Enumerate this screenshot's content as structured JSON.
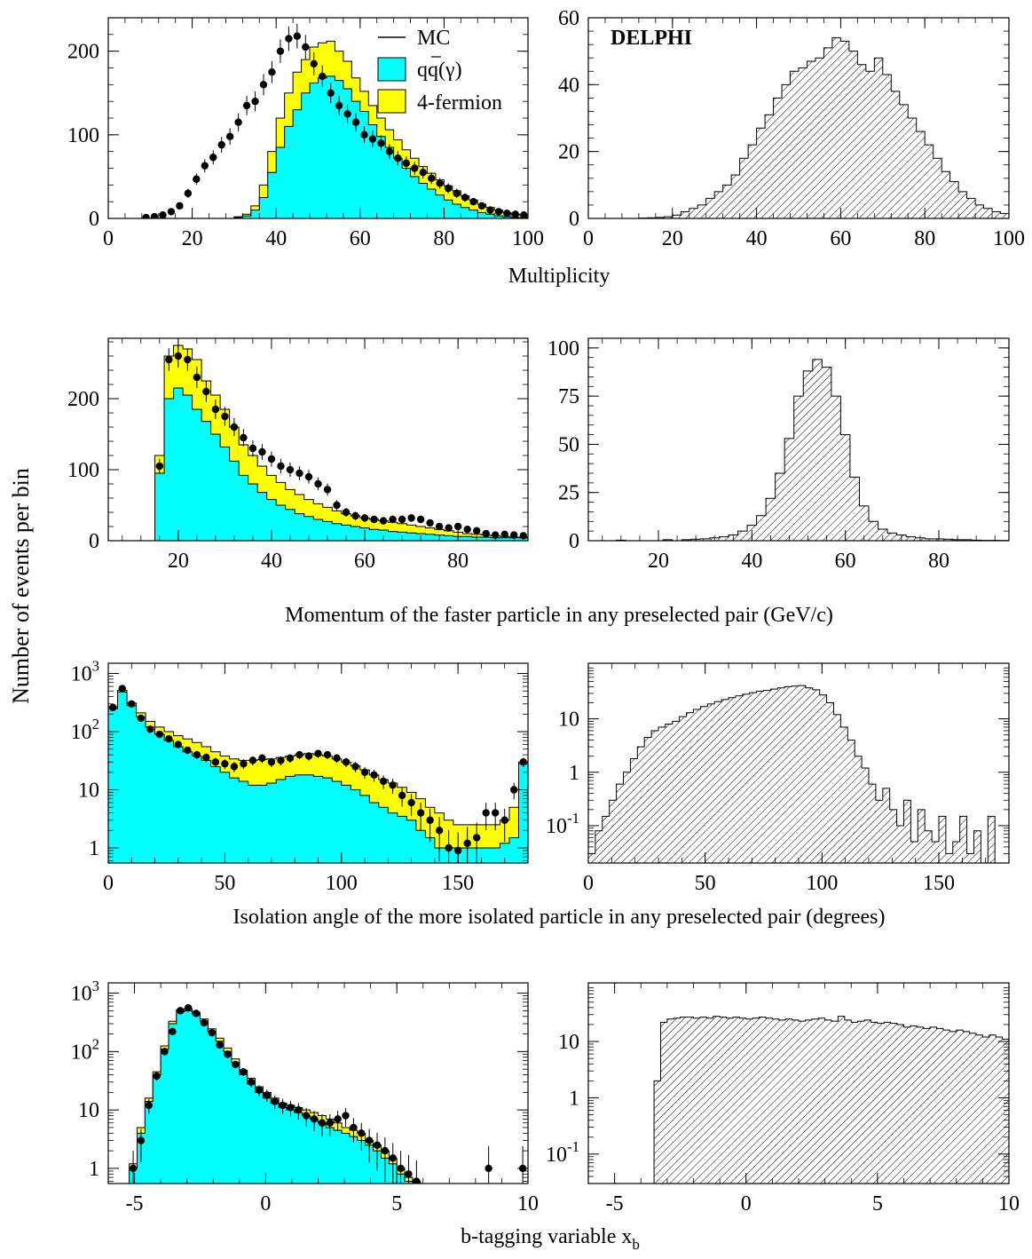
{
  "figure": {
    "y_axis_title": "Number of events per bin",
    "experiment_label": "DELPHI",
    "row_titles": [
      "Multiplicity",
      "Momentum of the faster particle in any preselected pair (GeV/c)",
      "Isolation angle of the more isolated particle in any preselected pair (degrees)",
      "b-tagging variable x"
    ],
    "row4_title_subscript": "b",
    "legend": {
      "mc": "MC",
      "qq": "qq(γ)",
      "four_fermion": "4-fermion"
    },
    "colors": {
      "qq": "#00ffff",
      "four_fermion": "#ffff00",
      "line": "#000000",
      "data": "#000000"
    }
  },
  "chart_data": [
    {
      "type": "bar",
      "title": "",
      "xlabel": "Multiplicity",
      "xlim": [
        0,
        100
      ],
      "ylim": [
        0,
        240
      ],
      "xticks": [
        "0",
        "20",
        "40",
        "60",
        "80",
        "100"
      ],
      "yticks": [
        "0",
        "100",
        "200"
      ],
      "bin_edges_start": 0,
      "bin_width": 2,
      "series": [
        {
          "name": "qq(γ)",
          "values": [
            0,
            0,
            0,
            0,
            0,
            0,
            0,
            0,
            0,
            0,
            0,
            0,
            0,
            0,
            0,
            1,
            3,
            10,
            25,
            55,
            85,
            110,
            130,
            150,
            162,
            168,
            170,
            165,
            155,
            140,
            128,
            112,
            98,
            85,
            72,
            60,
            50,
            42,
            35,
            28,
            22,
            17,
            13,
            10,
            7,
            5,
            3,
            2,
            1,
            1
          ]
        },
        {
          "name": "4-fermion",
          "values": [
            0,
            0,
            0,
            0,
            0,
            0,
            0,
            0,
            0,
            0,
            0,
            0,
            0,
            0,
            0,
            2,
            5,
            15,
            40,
            80,
            120,
            150,
            175,
            190,
            205,
            210,
            212,
            200,
            188,
            168,
            152,
            135,
            120,
            106,
            94,
            82,
            72,
            62,
            54,
            46,
            39,
            33,
            27,
            22,
            17,
            13,
            10,
            7,
            5,
            4
          ]
        },
        {
          "name": "Data",
          "values": [
            0,
            0,
            0,
            0,
            1,
            2,
            4,
            8,
            15,
            30,
            47,
            63,
            73,
            88,
            98,
            115,
            135,
            140,
            160,
            175,
            200,
            215,
            218,
            205,
            185,
            170,
            150,
            135,
            125,
            115,
            100,
            95,
            90,
            80,
            72,
            66,
            60,
            55,
            48,
            42,
            36,
            30,
            25,
            20,
            15,
            10,
            8,
            6,
            5,
            4
          ]
        }
      ]
    },
    {
      "type": "bar",
      "title": "",
      "xlabel": "Multiplicity",
      "xlim": [
        0,
        100
      ],
      "ylim": [
        0,
        60
      ],
      "xticks": [
        "0",
        "20",
        "40",
        "60",
        "80",
        "100"
      ],
      "yticks": [
        "0",
        "20",
        "40",
        "60"
      ],
      "bin_edges_start": 0,
      "bin_width": 2,
      "series": [
        {
          "name": "",
          "values": [
            0,
            0,
            0,
            0,
            0,
            0,
            0.1,
            0.2,
            0.3,
            0.5,
            1,
            2,
            3,
            4,
            6,
            8,
            10,
            13,
            18,
            22,
            27,
            31,
            36,
            40,
            44,
            45,
            47,
            48,
            51,
            54,
            53,
            50,
            46,
            44,
            48,
            43,
            38,
            34,
            30,
            26,
            22,
            18,
            14,
            11,
            8,
            6,
            4,
            3,
            2,
            1.5
          ]
        }
      ]
    },
    {
      "type": "bar",
      "title": "",
      "xlabel": "Momentum of the faster particle in any preselected pair (GeV/c)",
      "xlim": [
        5,
        95
      ],
      "ylim": [
        0,
        285
      ],
      "xticks": [
        "20",
        "40",
        "60",
        "80"
      ],
      "yticks": [
        "0",
        "100",
        "200"
      ],
      "bin_edges_start": 15,
      "bin_width": 2,
      "series": [
        {
          "name": "qq(γ)",
          "values": [
            95,
            200,
            215,
            205,
            185,
            168,
            150,
            132,
            112,
            92,
            80,
            68,
            58,
            50,
            44,
            38,
            34,
            30,
            27,
            24,
            22,
            20,
            18,
            16,
            15,
            13,
            12,
            11,
            10,
            9,
            8,
            7,
            6,
            6,
            5,
            5,
            4,
            4,
            4,
            4
          ]
        },
        {
          "name": "4-fermion",
          "values": [
            120,
            260,
            275,
            270,
            255,
            225,
            205,
            185,
            160,
            135,
            120,
            105,
            92,
            82,
            72,
            65,
            58,
            52,
            47,
            42,
            38,
            35,
            32,
            30,
            28,
            26,
            24,
            22,
            20,
            18,
            16,
            14,
            12,
            10,
            9,
            8,
            7,
            6,
            5,
            5
          ]
        },
        {
          "name": "Data",
          "values": [
            105,
            255,
            260,
            255,
            230,
            210,
            185,
            175,
            160,
            145,
            130,
            125,
            115,
            105,
            100,
            95,
            90,
            80,
            72,
            50,
            40,
            35,
            32,
            30,
            28,
            30,
            30,
            32,
            30,
            25,
            20,
            18,
            20,
            16,
            14,
            10,
            8,
            9,
            8,
            7
          ]
        }
      ]
    },
    {
      "type": "bar",
      "title": "",
      "xlabel": "Momentum of the faster particle in any preselected pair (GeV/c)",
      "xlim": [
        5,
        95
      ],
      "ylim": [
        0,
        105
      ],
      "xticks": [
        "20",
        "40",
        "60",
        "80"
      ],
      "yticks": [
        "0",
        "25",
        "50",
        "75",
        "100"
      ],
      "bin_edges_start": 5,
      "bin_width": 2,
      "series": [
        {
          "name": "",
          "values": [
            0,
            0,
            0,
            0.3,
            0,
            0,
            0,
            0,
            0.5,
            0,
            0.5,
            0.8,
            1,
            1.5,
            2,
            3,
            5,
            8,
            13,
            22,
            35,
            53,
            75,
            88,
            94,
            90,
            75,
            55,
            33,
            18,
            10,
            6,
            4,
            3,
            2,
            1.5,
            1,
            1,
            0.8,
            0.5,
            0.5,
            0.3,
            0.2,
            0.2,
            0.1
          ]
        }
      ]
    },
    {
      "type": "bar",
      "title": "",
      "xlabel": "Isolation angle of the more isolated particle in any preselected pair (degrees)",
      "xlim": [
        0,
        180
      ],
      "ylim": [
        0.55,
        1500
      ],
      "yscale": "log",
      "xticks": [
        "0",
        "50",
        "100",
        "150"
      ],
      "yticks": [
        "1",
        "10",
        "10^2",
        "10^3"
      ],
      "bin_edges_start": 0,
      "bin_width": 4,
      "series": [
        {
          "name": "qq(γ)",
          "values": [
            250,
            480,
            280,
            180,
            120,
            90,
            70,
            55,
            45,
            38,
            32,
            25,
            20,
            16,
            14,
            12,
            12,
            13,
            15,
            17,
            18,
            18,
            17,
            16,
            14,
            12,
            10,
            8,
            6,
            5,
            4,
            3.5,
            3,
            2,
            1.5,
            1,
            1,
            1,
            1,
            1,
            1,
            1,
            1.2,
            1.5,
            28
          ]
        },
        {
          "name": "4-fermion",
          "values": [
            270,
            510,
            310,
            210,
            150,
            120,
            100,
            85,
            75,
            65,
            55,
            45,
            38,
            34,
            32,
            32,
            33,
            34,
            36,
            38,
            40,
            42,
            40,
            38,
            34,
            30,
            26,
            22,
            18,
            15,
            13,
            11,
            9,
            7,
            5,
            4,
            3,
            2.5,
            2.5,
            2.5,
            2.5,
            2.5,
            3,
            5,
            30
          ]
        },
        {
          "name": "Data",
          "values": [
            260,
            550,
            300,
            170,
            110,
            90,
            75,
            60,
            48,
            40,
            36,
            30,
            28,
            25,
            28,
            32,
            35,
            30,
            32,
            35,
            40,
            38,
            42,
            40,
            35,
            30,
            25,
            20,
            18,
            14,
            12,
            8,
            6,
            4,
            3,
            2,
            1,
            0.9,
            1.2,
            1.5,
            4,
            4,
            3,
            10,
            30
          ]
        }
      ]
    },
    {
      "type": "bar",
      "title": "",
      "xlabel": "Isolation angle of the more isolated particle in any preselected pair (degrees)",
      "xlim": [
        0,
        180
      ],
      "ylim": [
        0.02,
        110
      ],
      "yscale": "log",
      "xticks": [
        "0",
        "50",
        "100",
        "150"
      ],
      "yticks": [
        "10^-1",
        "1",
        "10"
      ],
      "bin_edges_start": 0,
      "bin_width": 3,
      "series": [
        {
          "name": "",
          "values": [
            0.03,
            0.08,
            0.15,
            0.3,
            0.6,
            1,
            1.8,
            3,
            4.5,
            6,
            7,
            8,
            9,
            11,
            13,
            15,
            17,
            19,
            21,
            23,
            25,
            27,
            29,
            31,
            33,
            34,
            36,
            38,
            40,
            41,
            42,
            38,
            35,
            28,
            20,
            12,
            7,
            4,
            2,
            1.2,
            0.6,
            0.3,
            0.5,
            0.2,
            0.1,
            0.3,
            0.05,
            0.2,
            0.08,
            0.05,
            0.15,
            0.03,
            0.05,
            0.15,
            0.03,
            0.08,
            0.02,
            0.15
          ]
        }
      ]
    },
    {
      "type": "bar",
      "title": "",
      "xlabel": "b-tagging variable x_b",
      "xlim": [
        -6,
        10
      ],
      "ylim": [
        0.55,
        1500
      ],
      "yscale": "log",
      "xticks": [
        "-5",
        "0",
        "5",
        "10"
      ],
      "yticks": [
        "1",
        "10",
        "10^2",
        "10^3"
      ],
      "bin_edges_start": -5.2,
      "bin_width": 0.3,
      "series": [
        {
          "name": "qq(γ)",
          "values": [
            1,
            4,
            14,
            40,
            110,
            300,
            480,
            500,
            440,
            330,
            220,
            150,
            100,
            65,
            40,
            28,
            20,
            16,
            13,
            11,
            10,
            9,
            8,
            7,
            6,
            5,
            4.5,
            4,
            3.5,
            3,
            2.5,
            2,
            1.5,
            1.2,
            0.8,
            0.6,
            0.5
          ]
        },
        {
          "name": "4-fermion",
          "values": [
            1.2,
            5,
            16,
            45,
            125,
            330,
            520,
            540,
            470,
            360,
            245,
            170,
            115,
            75,
            48,
            35,
            25,
            20,
            16,
            13,
            12,
            11,
            10,
            9,
            8,
            7,
            6,
            5,
            4.5,
            4,
            3,
            2.5,
            2,
            1.5,
            1,
            0.7,
            0.6
          ]
        },
        {
          "name": "Data",
          "values": [
            1,
            3,
            12,
            38,
            100,
            220,
            500,
            560,
            450,
            310,
            210,
            130,
            90,
            60,
            45,
            30,
            22,
            18,
            14,
            12,
            11,
            10,
            8,
            7,
            6,
            6,
            7,
            8,
            5,
            4,
            3,
            2.5,
            2,
            1.5,
            1,
            0.8,
            0.6
          ]
        }
      ],
      "extra_data_points": [
        {
          "x": 8.5,
          "y": 1
        },
        {
          "x": 9.8,
          "y": 1
        }
      ]
    },
    {
      "type": "bar",
      "title": "",
      "xlabel": "b-tagging variable x_b",
      "xlim": [
        -6,
        10
      ],
      "ylim": [
        0.03,
        110
      ],
      "yscale": "log",
      "xticks": [
        "-5",
        "0",
        "5",
        "10"
      ],
      "yticks": [
        "10^-1",
        "1",
        "10"
      ],
      "bin_edges_start": -3.5,
      "bin_width": 0.25,
      "series": [
        {
          "name": "",
          "values": [
            2,
            22,
            25,
            26,
            27,
            27,
            26,
            27,
            26,
            28,
            27,
            26,
            27,
            26,
            25,
            26,
            27,
            26,
            25,
            24,
            25,
            24,
            23,
            24,
            25,
            26,
            24,
            23,
            28,
            24,
            22,
            23,
            24,
            22,
            21,
            22,
            21,
            20,
            18,
            19,
            18,
            17,
            18,
            17,
            16,
            15,
            16,
            15,
            14,
            13,
            12,
            13,
            12,
            11,
            10,
            9,
            8,
            8,
            7,
            6,
            5,
            4,
            3.5,
            3,
            2.5,
            2,
            1.5,
            1,
            0.7,
            0.5,
            0.4,
            0.1,
            0.05,
            0.04,
            0.03
          ]
        }
      ]
    }
  ]
}
